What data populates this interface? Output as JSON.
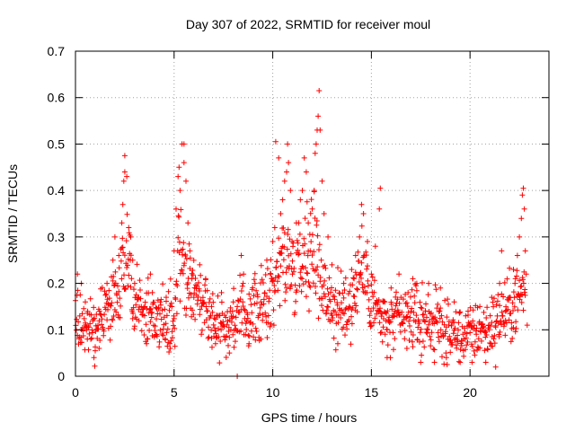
{
  "chart_data": {
    "type": "scatter",
    "title": "Day 307 of 2022, SRMTID for receiver moul",
    "xlabel": "GPS time / hours",
    "ylabel": "SRMTID / TECUs",
    "xlim": [
      0,
      24
    ],
    "ylim": [
      0,
      0.7
    ],
    "xticks": [
      "0",
      "5",
      "10",
      "15",
      "20"
    ],
    "yticks": [
      "0",
      "0.1",
      "0.2",
      "0.3",
      "0.4",
      "0.5",
      "0.6",
      "0.7"
    ],
    "grid": true,
    "marker": "+",
    "color": "#ff0000",
    "baseline": [
      [
        0.0,
        0.14
      ],
      [
        0.5,
        0.11
      ],
      [
        1.0,
        0.1
      ],
      [
        1.5,
        0.14
      ],
      [
        2.0,
        0.17
      ],
      [
        2.5,
        0.24
      ],
      [
        3.0,
        0.19
      ],
      [
        3.5,
        0.14
      ],
      [
        4.0,
        0.13
      ],
      [
        4.5,
        0.12
      ],
      [
        5.0,
        0.13
      ],
      [
        5.3,
        0.3
      ],
      [
        5.6,
        0.2
      ],
      [
        6.0,
        0.19
      ],
      [
        6.5,
        0.16
      ],
      [
        7.0,
        0.12
      ],
      [
        7.5,
        0.11
      ],
      [
        8.0,
        0.12
      ],
      [
        8.5,
        0.13
      ],
      [
        9.0,
        0.14
      ],
      [
        9.5,
        0.15
      ],
      [
        10.0,
        0.19
      ],
      [
        10.5,
        0.26
      ],
      [
        11.0,
        0.24
      ],
      [
        11.5,
        0.26
      ],
      [
        12.0,
        0.28
      ],
      [
        12.5,
        0.21
      ],
      [
        13.0,
        0.15
      ],
      [
        13.5,
        0.14
      ],
      [
        14.0,
        0.16
      ],
      [
        14.5,
        0.24
      ],
      [
        15.0,
        0.17
      ],
      [
        15.5,
        0.12
      ],
      [
        16.0,
        0.11
      ],
      [
        16.5,
        0.12
      ],
      [
        17.0,
        0.13
      ],
      [
        17.5,
        0.12
      ],
      [
        18.0,
        0.12
      ],
      [
        18.5,
        0.11
      ],
      [
        19.0,
        0.09
      ],
      [
        19.5,
        0.09
      ],
      [
        20.0,
        0.09
      ],
      [
        20.5,
        0.1
      ],
      [
        21.0,
        0.1
      ],
      [
        21.5,
        0.13
      ],
      [
        22.0,
        0.14
      ],
      [
        22.5,
        0.17
      ],
      [
        22.8,
        0.2
      ]
    ],
    "highlights": [
      [
        0.1,
        0.22
      ],
      [
        0.3,
        0.2
      ],
      [
        0.5,
        0.16
      ],
      [
        0.6,
        0.08
      ],
      [
        1.0,
        0.055
      ],
      [
        1.2,
        0.06
      ],
      [
        1.6,
        0.2
      ],
      [
        1.9,
        0.25
      ],
      [
        2.0,
        0.3
      ],
      [
        2.2,
        0.26
      ],
      [
        2.35,
        0.33
      ],
      [
        2.4,
        0.37
      ],
      [
        2.45,
        0.42
      ],
      [
        2.5,
        0.44
      ],
      [
        2.5,
        0.475
      ],
      [
        2.6,
        0.43
      ],
      [
        2.7,
        0.32
      ],
      [
        2.8,
        0.3
      ],
      [
        2.9,
        0.25
      ],
      [
        3.0,
        0.2
      ],
      [
        3.2,
        0.17
      ],
      [
        3.6,
        0.07
      ],
      [
        3.8,
        0.22
      ],
      [
        3.9,
        0.18
      ],
      [
        4.1,
        0.09
      ],
      [
        4.3,
        0.16
      ],
      [
        4.6,
        0.17
      ],
      [
        4.8,
        0.06
      ],
      [
        5.0,
        0.27
      ],
      [
        5.1,
        0.36
      ],
      [
        5.2,
        0.43
      ],
      [
        5.25,
        0.45
      ],
      [
        5.3,
        0.4
      ],
      [
        5.4,
        0.5
      ],
      [
        5.5,
        0.5
      ],
      [
        5.5,
        0.46
      ],
      [
        5.6,
        0.42
      ],
      [
        5.7,
        0.33
      ],
      [
        5.8,
        0.27
      ],
      [
        5.9,
        0.21
      ],
      [
        6.0,
        0.17
      ],
      [
        6.3,
        0.24
      ],
      [
        6.6,
        0.21
      ],
      [
        6.9,
        0.15
      ],
      [
        7.1,
        0.07
      ],
      [
        7.4,
        0.18
      ],
      [
        7.8,
        0.05
      ],
      [
        8.0,
        0.16
      ],
      [
        8.2,
        0.0
      ],
      [
        8.4,
        0.26
      ],
      [
        8.5,
        0.2
      ],
      [
        8.8,
        0.07
      ],
      [
        9.1,
        0.2
      ],
      [
        9.4,
        0.08
      ],
      [
        9.7,
        0.25
      ],
      [
        9.9,
        0.22
      ],
      [
        10.0,
        0.29
      ],
      [
        10.1,
        0.32
      ],
      [
        10.15,
        0.505
      ],
      [
        10.3,
        0.47
      ],
      [
        10.4,
        0.35
      ],
      [
        10.5,
        0.38
      ],
      [
        10.6,
        0.42
      ],
      [
        10.7,
        0.44
      ],
      [
        10.75,
        0.5
      ],
      [
        10.8,
        0.46
      ],
      [
        10.9,
        0.4
      ],
      [
        11.0,
        0.22
      ],
      [
        11.2,
        0.33
      ],
      [
        11.4,
        0.38
      ],
      [
        11.5,
        0.4
      ],
      [
        11.6,
        0.47
      ],
      [
        11.7,
        0.44
      ],
      [
        11.8,
        0.33
      ],
      [
        11.9,
        0.27
      ],
      [
        12.0,
        0.36
      ],
      [
        12.1,
        0.4
      ],
      [
        12.15,
        0.48
      ],
      [
        12.2,
        0.5
      ],
      [
        12.25,
        0.53
      ],
      [
        12.3,
        0.56
      ],
      [
        12.35,
        0.615
      ],
      [
        12.4,
        0.53
      ],
      [
        12.5,
        0.42
      ],
      [
        12.6,
        0.35
      ],
      [
        12.8,
        0.3
      ],
      [
        13.0,
        0.24
      ],
      [
        13.3,
        0.07
      ],
      [
        13.6,
        0.2
      ],
      [
        14.0,
        0.23
      ],
      [
        14.2,
        0.26
      ],
      [
        14.4,
        0.3
      ],
      [
        14.5,
        0.37
      ],
      [
        14.6,
        0.35
      ],
      [
        14.8,
        0.29
      ],
      [
        15.0,
        0.22
      ],
      [
        15.2,
        0.28
      ],
      [
        15.4,
        0.36
      ],
      [
        15.45,
        0.405
      ],
      [
        15.6,
        0.16
      ],
      [
        15.8,
        0.04
      ],
      [
        16.0,
        0.19
      ],
      [
        16.4,
        0.22
      ],
      [
        16.8,
        0.06
      ],
      [
        17.1,
        0.21
      ],
      [
        17.3,
        0.2
      ],
      [
        17.5,
        0.03
      ],
      [
        17.9,
        0.2
      ],
      [
        18.2,
        0.03
      ],
      [
        18.5,
        0.19
      ],
      [
        18.8,
        0.04
      ],
      [
        19.2,
        0.16
      ],
      [
        19.5,
        0.03
      ],
      [
        19.9,
        0.14
      ],
      [
        20.1,
        0.03
      ],
      [
        20.5,
        0.15
      ],
      [
        20.8,
        0.03
      ],
      [
        21.1,
        0.17
      ],
      [
        21.3,
        0.02
      ],
      [
        21.5,
        0.2
      ],
      [
        21.6,
        0.27
      ],
      [
        21.8,
        0.14
      ],
      [
        22.0,
        0.17
      ],
      [
        22.2,
        0.23
      ],
      [
        22.3,
        0.21
      ],
      [
        22.4,
        0.26
      ],
      [
        22.5,
        0.3
      ],
      [
        22.6,
        0.34
      ],
      [
        22.65,
        0.39
      ],
      [
        22.7,
        0.405
      ],
      [
        22.75,
        0.36
      ],
      [
        22.8,
        0.27
      ],
      [
        22.85,
        0.22
      ],
      [
        22.9,
        0.11
      ]
    ]
  }
}
